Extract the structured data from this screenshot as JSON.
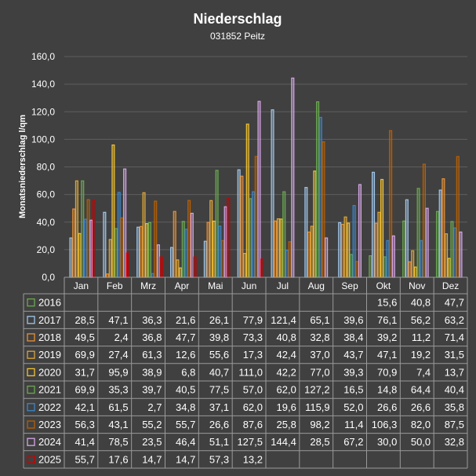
{
  "chart_data": {
    "type": "bar",
    "title": "Niederschlag",
    "subtitle": "031852  Peitz",
    "ylabel": "Monatsniederschlag  l/qm",
    "xlabel": "",
    "ylim": [
      0,
      160
    ],
    "yticks": [
      "0,0",
      "20,0",
      "40,0",
      "60,0",
      "80,0",
      "100,0",
      "120,0",
      "140,0",
      "160,0"
    ],
    "grid": true,
    "legend": "data-table",
    "categories": [
      "Jan",
      "Feb",
      "Mrz",
      "Apr",
      "Mai",
      "Jun",
      "Jul",
      "Aug",
      "Sep",
      "Okt",
      "Nov",
      "Dez"
    ],
    "series": [
      {
        "name": "2016",
        "color": "#6aa84f",
        "values": [
          null,
          null,
          null,
          null,
          null,
          null,
          null,
          null,
          null,
          15.6,
          40.8,
          47.7
        ],
        "labels": [
          "",
          "",
          "",
          "",
          "",
          "",
          "",
          "",
          "",
          "15,6",
          "40,8",
          "47,7"
        ]
      },
      {
        "name": "2017",
        "color": "#9fc5e8",
        "values": [
          28.5,
          47.1,
          36.3,
          21.6,
          26.1,
          77.9,
          121.4,
          65.1,
          39.6,
          76.1,
          56.2,
          63.2
        ],
        "labels": [
          "28,5",
          "47,1",
          "36,3",
          "21,6",
          "26,1",
          "77,9",
          "121,4",
          "65,1",
          "39,6",
          "76,1",
          "56,2",
          "63,2"
        ]
      },
      {
        "name": "2018",
        "color": "#e69138",
        "values": [
          49.5,
          2.4,
          36.8,
          47.7,
          39.8,
          73.3,
          40.8,
          32.8,
          38.4,
          39.2,
          11.2,
          71.4
        ],
        "labels": [
          "49,5",
          "2,4",
          "36,8",
          "47,7",
          "39,8",
          "73,3",
          "40,8",
          "32,8",
          "38,4",
          "39,2",
          "11,2",
          "71,4"
        ]
      },
      {
        "name": "2019",
        "color": "#d9a53a",
        "values": [
          69.9,
          27.4,
          61.3,
          12.6,
          55.6,
          17.3,
          42.4,
          37.0,
          43.7,
          47.1,
          19.2,
          31.5
        ],
        "labels": [
          "69,9",
          "27,4",
          "61,3",
          "12,6",
          "55,6",
          "17,3",
          "42,4",
          "37,0",
          "43,7",
          "47,1",
          "19,2",
          "31,5"
        ]
      },
      {
        "name": "2020",
        "color": "#f1c232",
        "values": [
          31.7,
          95.9,
          38.9,
          6.8,
          40.7,
          111.0,
          42.2,
          77.0,
          39.3,
          70.9,
          7.4,
          13.7
        ],
        "labels": [
          "31,7",
          "95,9",
          "38,9",
          "6,8",
          "40,7",
          "111,0",
          "42,2",
          "77,0",
          "39,3",
          "70,9",
          "7,4",
          "13,7"
        ]
      },
      {
        "name": "2021",
        "color": "#6aa84f",
        "values": [
          69.9,
          35.3,
          39.7,
          40.5,
          77.5,
          57.0,
          62.0,
          127.2,
          16.5,
          14.8,
          64.4,
          40.4
        ],
        "labels": [
          "69,9",
          "35,3",
          "39,7",
          "40,5",
          "77,5",
          "57,0",
          "62,0",
          "127,2",
          "16,5",
          "14,8",
          "64,4",
          "40,4"
        ]
      },
      {
        "name": "2022",
        "color": "#3d85c6",
        "values": [
          42.1,
          61.5,
          2.7,
          34.8,
          37.1,
          62.0,
          19.6,
          115.9,
          52.0,
          26.6,
          26.6,
          35.8
        ],
        "labels": [
          "42,1",
          "61,5",
          "2,7",
          "34,8",
          "37,1",
          "62,0",
          "19,6",
          "115,9",
          "52,0",
          "26,6",
          "26,6",
          "35,8"
        ]
      },
      {
        "name": "2023",
        "color": "#b45f06",
        "values": [
          56.3,
          43.1,
          55.2,
          55.7,
          26.6,
          87.6,
          25.8,
          98.2,
          11.4,
          106.3,
          82.0,
          87.5
        ],
        "labels": [
          "56,3",
          "43,1",
          "55,2",
          "55,7",
          "26,6",
          "87,6",
          "25,8",
          "98,2",
          "11,4",
          "106,3",
          "82,0",
          "87,5"
        ]
      },
      {
        "name": "2024",
        "color": "#d5a6e6",
        "values": [
          41.4,
          78.5,
          23.5,
          46.4,
          51.1,
          127.5,
          144.4,
          28.5,
          67.2,
          30.0,
          50.0,
          32.8
        ],
        "labels": [
          "41,4",
          "78,5",
          "23,5",
          "46,4",
          "51,1",
          "127,5",
          "144,4",
          "28,5",
          "67,2",
          "30,0",
          "50,0",
          "32,8"
        ]
      },
      {
        "name": "2025",
        "color": "#cc0000",
        "values": [
          55.7,
          17.6,
          14.7,
          14.7,
          57.3,
          13.2,
          null,
          null,
          null,
          null,
          null,
          null
        ],
        "labels": [
          "55,7",
          "17,6",
          "14,7",
          "14,7",
          "57,3",
          "13,2",
          "",
          "",
          "",
          "",
          "",
          ""
        ]
      }
    ]
  }
}
